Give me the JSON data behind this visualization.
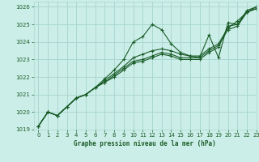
{
  "title": "Graphe pression niveau de la mer (hPa)",
  "bg_color": "#cceee8",
  "grid_color": "#aad8d0",
  "line_color": "#1a5c28",
  "xlim": [
    -0.5,
    23
  ],
  "ylim": [
    1019,
    1026.3
  ],
  "xticks": [
    0,
    1,
    2,
    3,
    4,
    5,
    6,
    7,
    8,
    9,
    10,
    11,
    12,
    13,
    14,
    15,
    16,
    17,
    18,
    19,
    20,
    21,
    22,
    23
  ],
  "yticks": [
    1019,
    1020,
    1021,
    1022,
    1023,
    1024,
    1025,
    1026
  ],
  "series": [
    [
      1019.2,
      1020.0,
      1019.8,
      1020.3,
      1020.8,
      1021.0,
      1021.4,
      1021.9,
      1022.4,
      1023.0,
      1024.0,
      1024.3,
      1025.0,
      1024.7,
      1023.9,
      1023.4,
      1023.2,
      1023.1,
      1024.4,
      1023.1,
      1025.1,
      1025.0,
      1025.8,
      1026.0
    ],
    [
      1019.2,
      1020.0,
      1019.8,
      1020.3,
      1020.8,
      1021.0,
      1021.4,
      1021.8,
      1022.2,
      1022.6,
      1023.1,
      1023.3,
      1023.5,
      1023.6,
      1023.5,
      1023.3,
      1023.2,
      1023.2,
      1023.6,
      1023.9,
      1024.8,
      1025.2,
      1025.7,
      1026.0
    ],
    [
      1019.2,
      1020.0,
      1019.8,
      1020.3,
      1020.8,
      1021.0,
      1021.4,
      1021.7,
      1022.1,
      1022.5,
      1022.9,
      1023.0,
      1023.2,
      1023.4,
      1023.3,
      1023.1,
      1023.1,
      1023.1,
      1023.5,
      1023.8,
      1024.7,
      1024.9,
      1025.7,
      1025.9
    ],
    [
      1019.2,
      1020.0,
      1019.8,
      1020.3,
      1020.8,
      1021.0,
      1021.4,
      1021.7,
      1022.0,
      1022.4,
      1022.8,
      1022.9,
      1023.1,
      1023.3,
      1023.2,
      1023.0,
      1023.0,
      1023.0,
      1023.4,
      1023.7,
      1024.9,
      1025.0,
      1025.7,
      1025.9
    ]
  ]
}
